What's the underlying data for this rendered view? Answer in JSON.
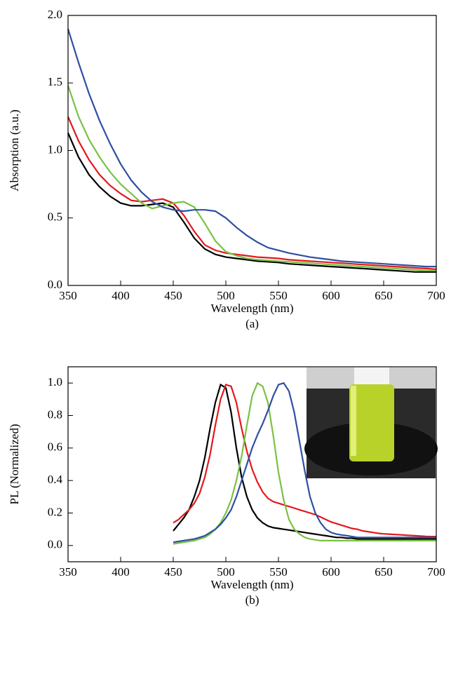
{
  "chart_data": [
    {
      "type": "line",
      "caption": "(a)",
      "xlabel": "Wavelength (nm)",
      "ylabel": "Absorption (a.u.)",
      "xlim": [
        350,
        700
      ],
      "xticks": [
        350,
        400,
        450,
        500,
        550,
        600,
        650,
        700
      ],
      "ylim": [
        0,
        2
      ],
      "yticks": [
        {
          "value": 0,
          "label": "0.0"
        },
        0.5,
        {
          "value": 1,
          "label": "1.0"
        },
        1.5,
        {
          "value": 2,
          "label": "2.0"
        }
      ],
      "x": [
        350,
        360,
        370,
        380,
        390,
        400,
        410,
        420,
        430,
        440,
        450,
        460,
        470,
        480,
        490,
        500,
        510,
        520,
        530,
        540,
        550,
        560,
        570,
        580,
        590,
        600,
        610,
        620,
        630,
        640,
        650,
        660,
        670,
        680,
        690,
        700
      ],
      "series": [
        {
          "color": "#000000",
          "values": [
            1.13,
            0.95,
            0.82,
            0.73,
            0.66,
            0.61,
            0.59,
            0.59,
            0.6,
            0.61,
            0.58,
            0.47,
            0.35,
            0.27,
            0.23,
            0.21,
            0.2,
            0.19,
            0.18,
            0.175,
            0.17,
            0.16,
            0.155,
            0.15,
            0.145,
            0.14,
            0.135,
            0.13,
            0.125,
            0.12,
            0.115,
            0.11,
            0.105,
            0.1,
            0.1,
            0.1
          ]
        },
        {
          "color": "#e3191c",
          "values": [
            1.25,
            1.07,
            0.93,
            0.82,
            0.74,
            0.68,
            0.63,
            0.62,
            0.63,
            0.64,
            0.61,
            0.52,
            0.4,
            0.3,
            0.26,
            0.24,
            0.23,
            0.22,
            0.21,
            0.205,
            0.2,
            0.19,
            0.185,
            0.18,
            0.175,
            0.17,
            0.165,
            0.16,
            0.155,
            0.15,
            0.145,
            0.14,
            0.135,
            0.13,
            0.125,
            0.12
          ]
        },
        {
          "color": "#7ac143",
          "values": [
            1.48,
            1.25,
            1.08,
            0.95,
            0.84,
            0.75,
            0.68,
            0.61,
            0.57,
            0.59,
            0.61,
            0.62,
            0.58,
            0.46,
            0.33,
            0.25,
            0.22,
            0.2,
            0.19,
            0.185,
            0.18,
            0.175,
            0.17,
            0.165,
            0.16,
            0.155,
            0.15,
            0.145,
            0.14,
            0.135,
            0.13,
            0.125,
            0.12,
            0.115,
            0.11,
            0.11
          ]
        },
        {
          "color": "#2e4fa3",
          "values": [
            1.9,
            1.65,
            1.42,
            1.22,
            1.05,
            0.9,
            0.78,
            0.69,
            0.62,
            0.58,
            0.56,
            0.55,
            0.56,
            0.56,
            0.55,
            0.5,
            0.43,
            0.37,
            0.32,
            0.28,
            0.26,
            0.24,
            0.225,
            0.21,
            0.2,
            0.19,
            0.18,
            0.175,
            0.17,
            0.165,
            0.16,
            0.155,
            0.15,
            0.145,
            0.14,
            0.14
          ]
        }
      ]
    },
    {
      "type": "line",
      "caption": "(b)",
      "xlabel": "Wavelength (nm)",
      "ylabel": "PL (Normalized)",
      "xlim": [
        350,
        700
      ],
      "xticks": [
        350,
        400,
        450,
        500,
        550,
        600,
        650,
        700
      ],
      "ylim": [
        -0.1,
        1.1
      ],
      "yticks": [
        {
          "value": 0,
          "label": "0.0"
        },
        0.2,
        0.4,
        0.6,
        0.8,
        {
          "value": 1,
          "label": "1.0"
        }
      ],
      "x": [
        450,
        455,
        460,
        465,
        470,
        475,
        480,
        485,
        490,
        495,
        500,
        505,
        510,
        515,
        520,
        525,
        530,
        535,
        540,
        545,
        550,
        555,
        560,
        565,
        570,
        575,
        580,
        585,
        590,
        595,
        600,
        605,
        610,
        615,
        620,
        625,
        630,
        635,
        640,
        645,
        650,
        655,
        660,
        665,
        670,
        675,
        680,
        685,
        690,
        695,
        700
      ],
      "series": [
        {
          "color": "#000000",
          "values": [
            0.09,
            0.13,
            0.17,
            0.22,
            0.3,
            0.4,
            0.54,
            0.72,
            0.88,
            0.99,
            0.97,
            0.82,
            0.6,
            0.42,
            0.3,
            0.22,
            0.17,
            0.14,
            0.12,
            0.11,
            0.105,
            0.1,
            0.095,
            0.09,
            0.085,
            0.08,
            0.075,
            0.07,
            0.065,
            0.06,
            0.055,
            0.05,
            0.05,
            0.045,
            0.045,
            0.04,
            0.04,
            0.04,
            0.04,
            0.04,
            0.04,
            0.04,
            0.04,
            0.04,
            0.04,
            0.04,
            0.04,
            0.04,
            0.04,
            0.04,
            0.04
          ]
        },
        {
          "color": "#e3191c",
          "values": [
            0.14,
            0.16,
            0.19,
            0.22,
            0.26,
            0.32,
            0.42,
            0.56,
            0.74,
            0.9,
            0.99,
            0.98,
            0.88,
            0.72,
            0.58,
            0.47,
            0.39,
            0.33,
            0.29,
            0.27,
            0.26,
            0.25,
            0.24,
            0.23,
            0.22,
            0.21,
            0.2,
            0.19,
            0.175,
            0.16,
            0.145,
            0.135,
            0.125,
            0.115,
            0.105,
            0.1,
            0.09,
            0.085,
            0.08,
            0.075,
            0.072,
            0.07,
            0.068,
            0.066,
            0.064,
            0.062,
            0.06,
            0.058,
            0.056,
            0.055,
            0.055
          ]
        },
        {
          "color": "#7ac143",
          "values": [
            0.01,
            0.015,
            0.02,
            0.025,
            0.03,
            0.04,
            0.05,
            0.07,
            0.1,
            0.14,
            0.2,
            0.28,
            0.4,
            0.55,
            0.74,
            0.92,
            1.0,
            0.98,
            0.88,
            0.68,
            0.45,
            0.28,
            0.16,
            0.1,
            0.07,
            0.05,
            0.04,
            0.035,
            0.03,
            0.03,
            0.03,
            0.03,
            0.03,
            0.03,
            0.03,
            0.03,
            0.03,
            0.03,
            0.03,
            0.03,
            0.03,
            0.03,
            0.03,
            0.03,
            0.03,
            0.03,
            0.03,
            0.03,
            0.03,
            0.03,
            0.03
          ]
        },
        {
          "color": "#2e4fa3",
          "values": [
            0.02,
            0.025,
            0.03,
            0.035,
            0.04,
            0.05,
            0.06,
            0.08,
            0.1,
            0.13,
            0.17,
            0.22,
            0.3,
            0.4,
            0.5,
            0.6,
            0.68,
            0.75,
            0.83,
            0.92,
            0.99,
            1.0,
            0.95,
            0.82,
            0.64,
            0.46,
            0.3,
            0.2,
            0.14,
            0.1,
            0.08,
            0.07,
            0.065,
            0.06,
            0.055,
            0.05,
            0.05,
            0.05,
            0.05,
            0.05,
            0.05,
            0.05,
            0.05,
            0.05,
            0.05,
            0.05,
            0.05,
            0.05,
            0.05,
            0.05,
            0.05
          ]
        }
      ]
    }
  ]
}
